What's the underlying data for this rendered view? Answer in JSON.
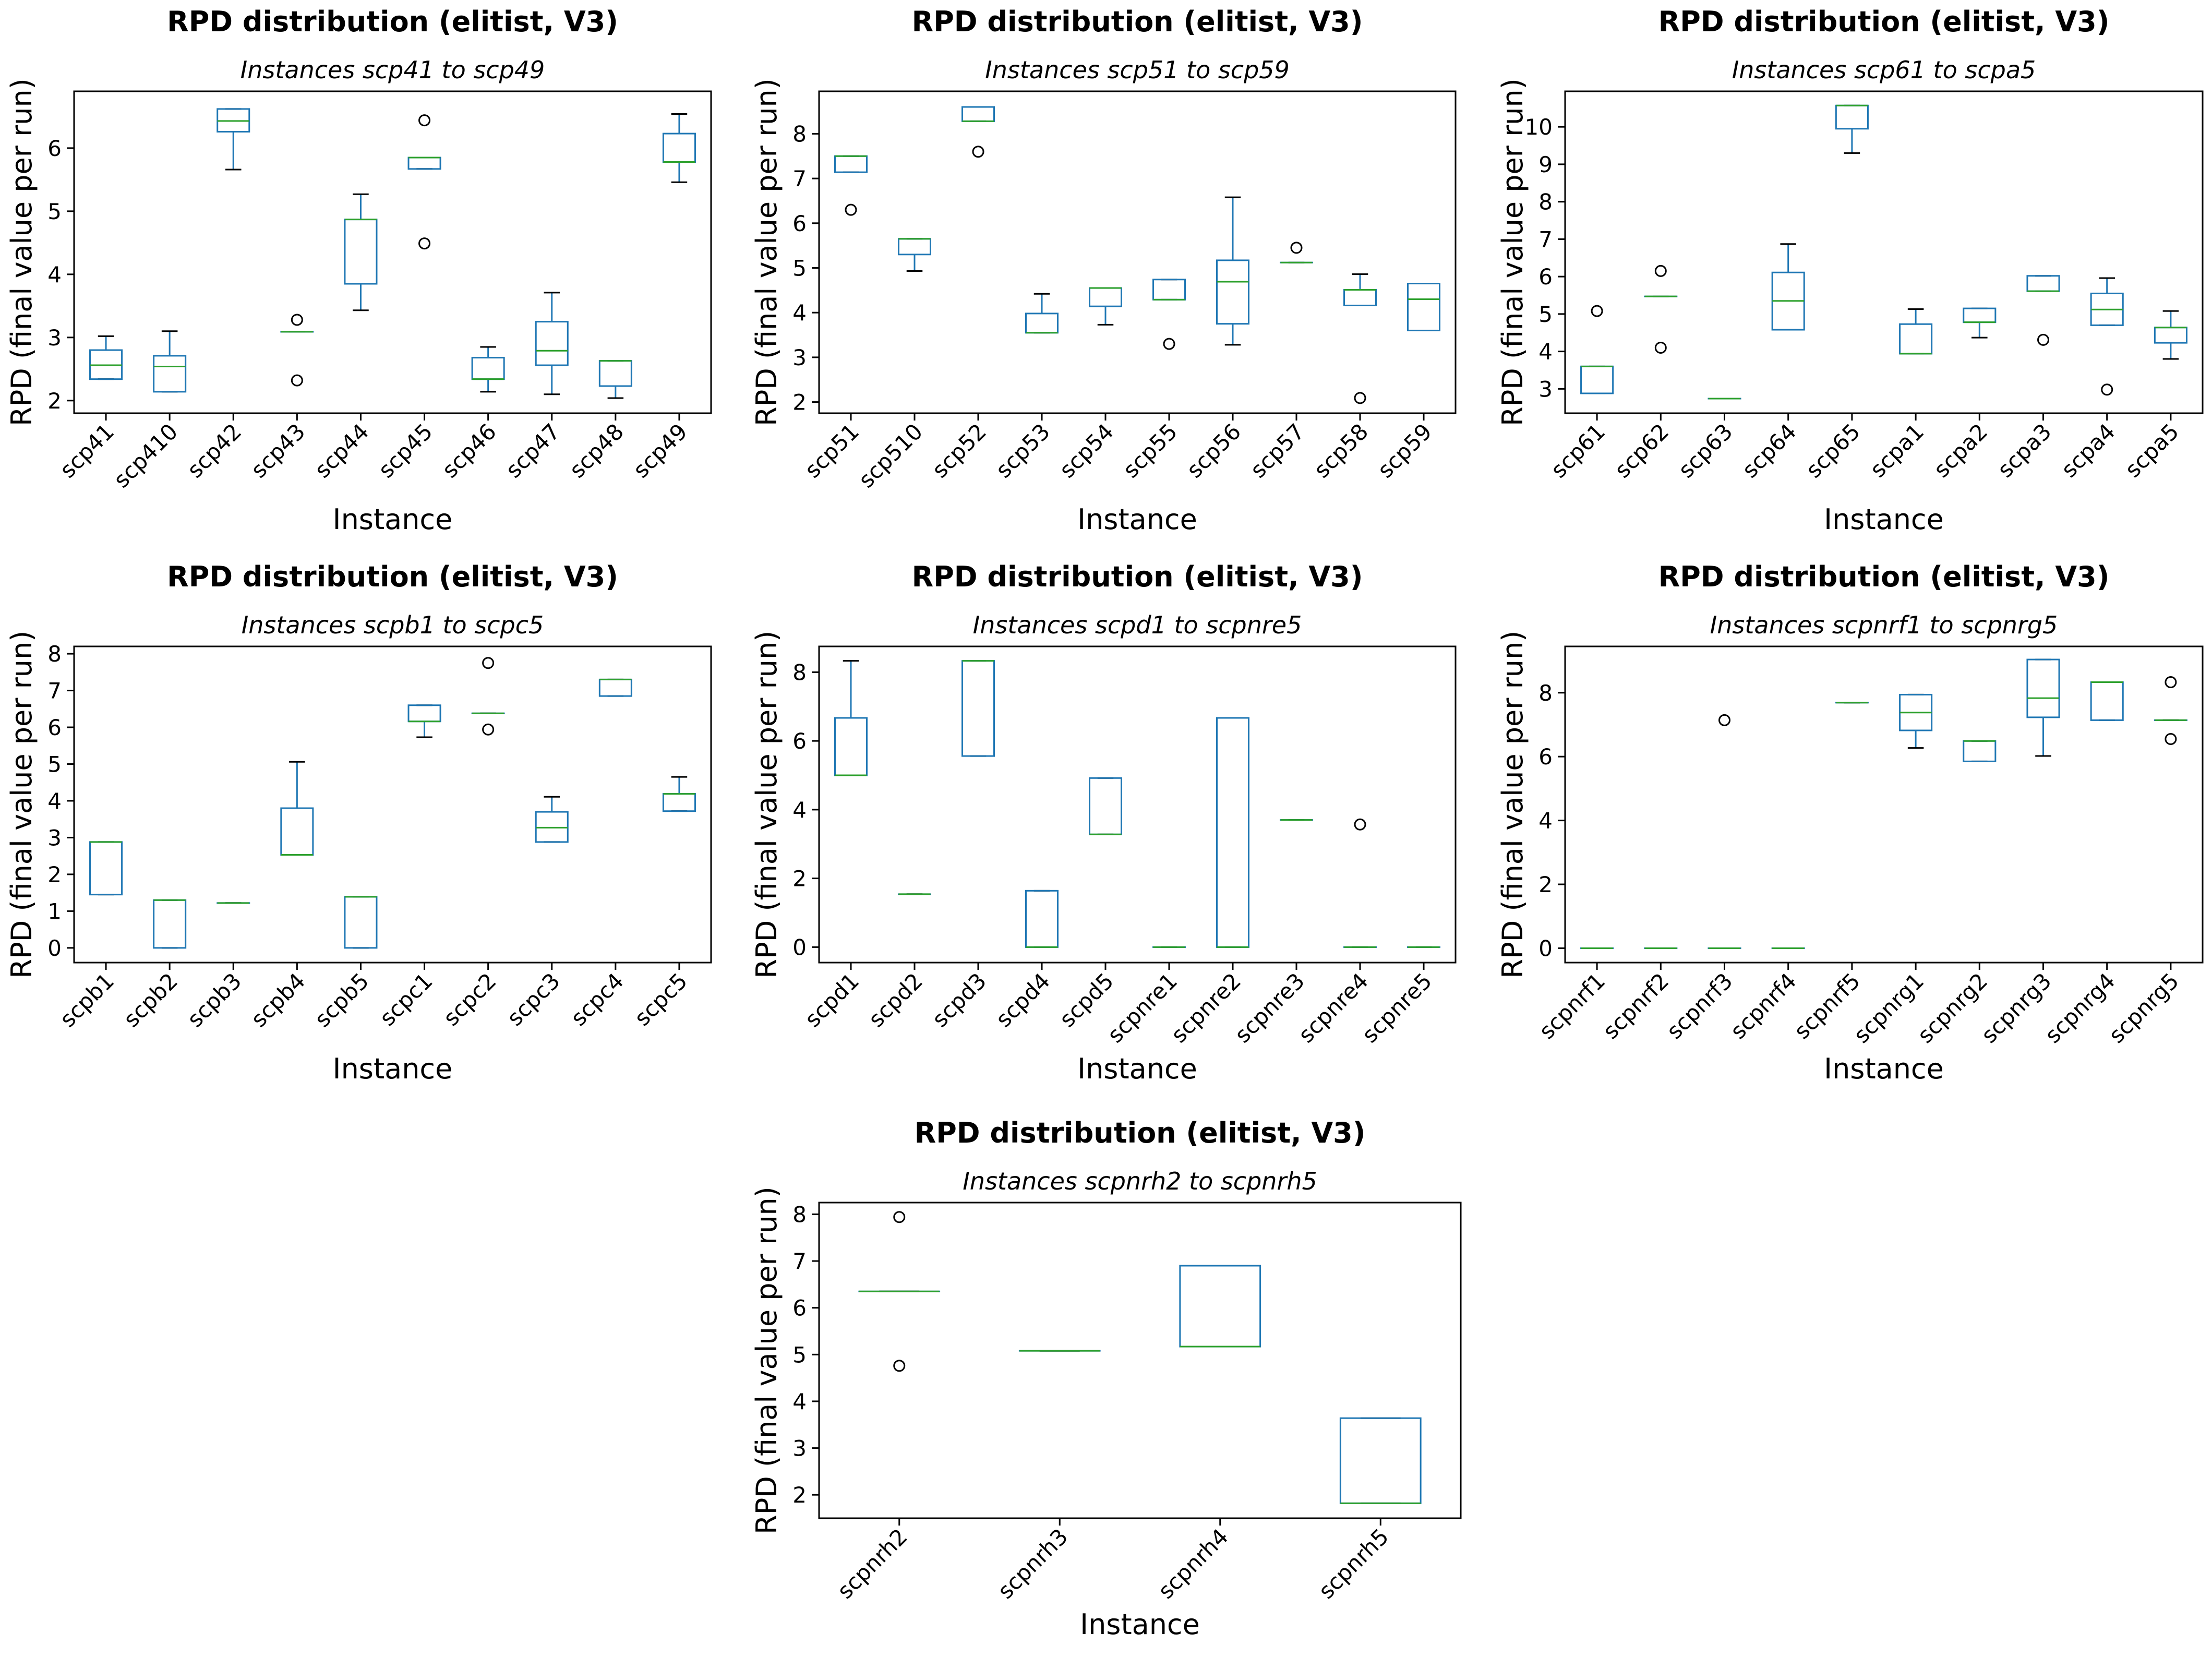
{
  "chart_data": [
    {
      "type": "box",
      "title": "RPD distribution (elitist, V3)",
      "subtitle": "Instances scp41 to scp49",
      "xlabel": "Instance",
      "ylabel": "RPD (final value per run)",
      "ylim": [
        1.8,
        6.9
      ],
      "yticks": [
        2,
        3,
        4,
        5,
        6
      ],
      "categories": [
        "scp41",
        "scp410",
        "scp42",
        "scp43",
        "scp44",
        "scp45",
        "scp46",
        "scp47",
        "scp48",
        "scp49"
      ],
      "boxes": [
        {
          "whislo": 2.34,
          "q1": 2.34,
          "med": 2.56,
          "q3": 2.8,
          "whishi": 3.02,
          "fliers": []
        },
        {
          "whislo": 2.14,
          "q1": 2.14,
          "med": 2.54,
          "q3": 2.71,
          "whishi": 3.1,
          "fliers": []
        },
        {
          "whislo": 5.66,
          "q1": 6.26,
          "med": 6.43,
          "q3": 6.62,
          "whishi": 6.62,
          "fliers": []
        },
        {
          "whislo": 3.09,
          "q1": 3.09,
          "med": 3.09,
          "q3": 3.09,
          "whishi": 3.09,
          "fliers": [
            3.28,
            2.32
          ]
        },
        {
          "whislo": 3.43,
          "q1": 3.85,
          "med": 4.87,
          "q3": 4.87,
          "whishi": 5.27,
          "fliers": []
        },
        {
          "whislo": 5.67,
          "q1": 5.67,
          "med": 5.85,
          "q3": 5.85,
          "whishi": 5.85,
          "fliers": [
            6.44,
            4.49
          ]
        },
        {
          "whislo": 2.14,
          "q1": 2.34,
          "med": 2.34,
          "q3": 2.68,
          "whishi": 2.85,
          "fliers": []
        },
        {
          "whislo": 2.1,
          "q1": 2.56,
          "med": 2.79,
          "q3": 3.25,
          "whishi": 3.71,
          "fliers": []
        },
        {
          "whislo": 2.04,
          "q1": 2.23,
          "med": 2.63,
          "q3": 2.63,
          "whishi": 2.63,
          "fliers": []
        },
        {
          "whislo": 5.46,
          "q1": 5.78,
          "med": 5.78,
          "q3": 6.23,
          "whishi": 6.54,
          "fliers": []
        }
      ]
    },
    {
      "type": "box",
      "title": "RPD distribution (elitist, V3)",
      "subtitle": "Instances scp51 to scp59",
      "xlabel": "Instance",
      "ylabel": "RPD (final value per run)",
      "ylim": [
        1.75,
        8.95
      ],
      "yticks": [
        2,
        3,
        4,
        5,
        6,
        7,
        8
      ],
      "categories": [
        "scp51",
        "scp510",
        "scp52",
        "scp53",
        "scp54",
        "scp55",
        "scp56",
        "scp57",
        "scp58",
        "scp59"
      ],
      "boxes": [
        {
          "whislo": 7.14,
          "q1": 7.14,
          "med": 7.5,
          "q3": 7.5,
          "whishi": 7.5,
          "fliers": [
            6.3
          ]
        },
        {
          "whislo": 4.93,
          "q1": 5.3,
          "med": 5.65,
          "q3": 5.65,
          "whishi": 5.65,
          "fliers": []
        },
        {
          "whislo": 8.28,
          "q1": 8.28,
          "med": 8.28,
          "q3": 8.6,
          "whishi": 8.6,
          "fliers": [
            7.6
          ]
        },
        {
          "whislo": 3.55,
          "q1": 3.55,
          "med": 3.55,
          "q3": 3.98,
          "whishi": 4.42,
          "fliers": []
        },
        {
          "whislo": 3.73,
          "q1": 4.14,
          "med": 4.55,
          "q3": 4.55,
          "whishi": 4.55,
          "fliers": []
        },
        {
          "whislo": 4.29,
          "q1": 4.29,
          "med": 4.29,
          "q3": 4.74,
          "whishi": 4.74,
          "fliers": [
            3.3
          ]
        },
        {
          "whislo": 3.28,
          "q1": 3.75,
          "med": 4.69,
          "q3": 5.17,
          "whishi": 6.58,
          "fliers": []
        },
        {
          "whislo": 5.12,
          "q1": 5.12,
          "med": 5.12,
          "q3": 5.12,
          "whishi": 5.12,
          "fliers": [
            5.45
          ]
        },
        {
          "whislo": 4.16,
          "q1": 4.16,
          "med": 4.51,
          "q3": 4.51,
          "whishi": 4.86,
          "fliers": [
            2.09
          ]
        },
        {
          "whislo": 3.6,
          "q1": 3.6,
          "med": 4.3,
          "q3": 4.65,
          "whishi": 4.65,
          "fliers": []
        }
      ]
    },
    {
      "type": "box",
      "title": "RPD distribution (elitist, V3)",
      "subtitle": "Instances scp61 to scpa5",
      "xlabel": "Instance",
      "ylabel": "RPD (final value per run)",
      "ylim": [
        2.35,
        10.95
      ],
      "yticks": [
        3,
        4,
        5,
        6,
        7,
        8,
        9,
        10
      ],
      "categories": [
        "scp61",
        "scp62",
        "scp63",
        "scp64",
        "scp65",
        "scpa1",
        "scpa2",
        "scpa3",
        "scpa4",
        "scpa5"
      ],
      "boxes": [
        {
          "whislo": 2.88,
          "q1": 2.88,
          "med": 3.6,
          "q3": 3.6,
          "whishi": 3.6,
          "fliers": [
            5.08
          ]
        },
        {
          "whislo": 5.47,
          "q1": 5.47,
          "med": 5.47,
          "q3": 5.47,
          "whishi": 5.47,
          "fliers": [
            6.15,
            4.1
          ]
        },
        {
          "whislo": 2.74,
          "q1": 2.74,
          "med": 2.74,
          "q3": 2.74,
          "whishi": 2.74,
          "fliers": []
        },
        {
          "whislo": 4.58,
          "q1": 4.58,
          "med": 5.35,
          "q3": 6.11,
          "whishi": 6.87,
          "fliers": []
        },
        {
          "whislo": 9.3,
          "q1": 9.95,
          "med": 10.57,
          "q3": 10.57,
          "whishi": 10.57,
          "fliers": []
        },
        {
          "whislo": 3.94,
          "q1": 3.94,
          "med": 3.94,
          "q3": 4.73,
          "whishi": 5.13,
          "fliers": []
        },
        {
          "whislo": 4.37,
          "q1": 4.78,
          "med": 4.78,
          "q3": 5.15,
          "whishi": 5.15,
          "fliers": []
        },
        {
          "whislo": 5.61,
          "q1": 5.61,
          "med": 5.61,
          "q3": 6.02,
          "whishi": 6.02,
          "fliers": [
            4.31
          ]
        },
        {
          "whislo": 4.7,
          "q1": 4.7,
          "med": 5.12,
          "q3": 5.55,
          "whishi": 5.96,
          "fliers": [
            2.98
          ]
        },
        {
          "whislo": 3.8,
          "q1": 4.23,
          "med": 4.64,
          "q3": 4.64,
          "whishi": 5.08,
          "fliers": []
        }
      ]
    },
    {
      "type": "box",
      "title": "RPD distribution (elitist, V3)",
      "subtitle": "Instances scpb1 to scpc5",
      "xlabel": "Instance",
      "ylabel": "RPD (final value per run)",
      "ylim": [
        -0.4,
        8.2
      ],
      "yticks": [
        0,
        1,
        2,
        3,
        4,
        5,
        6,
        7,
        8
      ],
      "categories": [
        "scpb1",
        "scpb2",
        "scpb3",
        "scpb4",
        "scpb5",
        "scpc1",
        "scpc2",
        "scpc3",
        "scpc4",
        "scpc5"
      ],
      "boxes": [
        {
          "whislo": 1.45,
          "q1": 1.45,
          "med": 2.88,
          "q3": 2.88,
          "whishi": 2.88,
          "fliers": []
        },
        {
          "whislo": 0.0,
          "q1": 0.0,
          "med": 1.3,
          "q3": 1.3,
          "whishi": 1.3,
          "fliers": []
        },
        {
          "whislo": 1.22,
          "q1": 1.22,
          "med": 1.22,
          "q3": 1.22,
          "whishi": 1.22,
          "fliers": []
        },
        {
          "whislo": 2.53,
          "q1": 2.53,
          "med": 2.53,
          "q3": 3.8,
          "whishi": 5.06,
          "fliers": []
        },
        {
          "whislo": 0.0,
          "q1": 0.0,
          "med": 1.39,
          "q3": 1.39,
          "whishi": 1.39,
          "fliers": []
        },
        {
          "whislo": 5.73,
          "q1": 6.16,
          "med": 6.16,
          "q3": 6.6,
          "whishi": 6.6,
          "fliers": []
        },
        {
          "whislo": 6.38,
          "q1": 6.38,
          "med": 6.38,
          "q3": 6.38,
          "whishi": 6.38,
          "fliers": [
            7.75,
            5.94
          ]
        },
        {
          "whislo": 2.88,
          "q1": 2.88,
          "med": 3.27,
          "q3": 3.7,
          "whishi": 4.11,
          "fliers": []
        },
        {
          "whislo": 6.85,
          "q1": 6.85,
          "med": 7.3,
          "q3": 7.3,
          "whishi": 7.3,
          "fliers": []
        },
        {
          "whislo": 3.72,
          "q1": 3.72,
          "med": 4.19,
          "q3": 4.19,
          "whishi": 4.65,
          "fliers": []
        }
      ]
    },
    {
      "type": "box",
      "title": "RPD distribution (elitist, V3)",
      "subtitle": "Instances scpd1 to scpnre5",
      "xlabel": "Instance",
      "ylabel": "RPD (final value per run)",
      "ylim": [
        -0.45,
        8.75
      ],
      "yticks": [
        0,
        2,
        4,
        6,
        8
      ],
      "categories": [
        "scpd1",
        "scpd2",
        "scpd3",
        "scpd4",
        "scpd5",
        "scpnre1",
        "scpnre2",
        "scpnre3",
        "scpnre4",
        "scpnre5"
      ],
      "boxes": [
        {
          "whislo": 5.0,
          "q1": 5.0,
          "med": 5.0,
          "q3": 6.67,
          "whishi": 8.33,
          "fliers": []
        },
        {
          "whislo": 1.54,
          "q1": 1.54,
          "med": 1.54,
          "q3": 1.54,
          "whishi": 1.54,
          "fliers": []
        },
        {
          "whislo": 5.56,
          "q1": 5.56,
          "med": 8.33,
          "q3": 8.33,
          "whishi": 8.33,
          "fliers": []
        },
        {
          "whislo": 0.0,
          "q1": 0.0,
          "med": 0.0,
          "q3": 1.64,
          "whishi": 1.64,
          "fliers": []
        },
        {
          "whislo": 3.28,
          "q1": 3.28,
          "med": 3.28,
          "q3": 4.92,
          "whishi": 4.92,
          "fliers": []
        },
        {
          "whislo": 0.0,
          "q1": 0.0,
          "med": 0.0,
          "q3": 0.0,
          "whishi": 0.0,
          "fliers": []
        },
        {
          "whislo": 0.0,
          "q1": 0.0,
          "med": 0.0,
          "q3": 6.67,
          "whishi": 6.67,
          "fliers": []
        },
        {
          "whislo": 3.7,
          "q1": 3.7,
          "med": 3.7,
          "q3": 3.7,
          "whishi": 3.7,
          "fliers": []
        },
        {
          "whislo": 0.0,
          "q1": 0.0,
          "med": 0.0,
          "q3": 0.0,
          "whishi": 0.0,
          "fliers": [
            3.57
          ]
        },
        {
          "whislo": 0.0,
          "q1": 0.0,
          "med": 0.0,
          "q3": 0.0,
          "whishi": 0.0,
          "fliers": []
        }
      ]
    },
    {
      "type": "box",
      "title": "RPD distribution (elitist, V3)",
      "subtitle": "Instances scpnrf1 to scpnrg5",
      "xlabel": "Instance",
      "ylabel": "RPD (final value per run)",
      "ylim": [
        -0.45,
        9.45
      ],
      "yticks": [
        0,
        2,
        4,
        6,
        8
      ],
      "categories": [
        "scpnrf1",
        "scpnrf2",
        "scpnrf3",
        "scpnrf4",
        "scpnrf5",
        "scpnrg1",
        "scpnrg2",
        "scpnrg3",
        "scpnrg4",
        "scpnrg5"
      ],
      "boxes": [
        {
          "whislo": 0.0,
          "q1": 0.0,
          "med": 0.0,
          "q3": 0.0,
          "whishi": 0.0,
          "fliers": []
        },
        {
          "whislo": 0.0,
          "q1": 0.0,
          "med": 0.0,
          "q3": 0.0,
          "whishi": 0.0,
          "fliers": []
        },
        {
          "whislo": 0.0,
          "q1": 0.0,
          "med": 0.0,
          "q3": 0.0,
          "whishi": 0.0,
          "fliers": [
            7.14
          ]
        },
        {
          "whislo": 0.0,
          "q1": 0.0,
          "med": 0.0,
          "q3": 0.0,
          "whishi": 0.0,
          "fliers": []
        },
        {
          "whislo": 7.69,
          "q1": 7.69,
          "med": 7.69,
          "q3": 7.69,
          "whishi": 7.69,
          "fliers": []
        },
        {
          "whislo": 6.27,
          "q1": 6.82,
          "med": 7.38,
          "q3": 7.94,
          "whishi": 7.94,
          "fliers": []
        },
        {
          "whislo": 5.85,
          "q1": 5.85,
          "med": 6.49,
          "q3": 6.49,
          "whishi": 6.49,
          "fliers": []
        },
        {
          "whislo": 6.02,
          "q1": 7.23,
          "med": 7.83,
          "q3": 9.04,
          "whishi": 9.04,
          "fliers": []
        },
        {
          "whislo": 7.14,
          "q1": 7.14,
          "med": 8.33,
          "q3": 8.33,
          "whishi": 8.33,
          "fliers": []
        },
        {
          "whislo": 7.14,
          "q1": 7.14,
          "med": 7.14,
          "q3": 7.14,
          "whishi": 7.14,
          "fliers": [
            8.33,
            6.55
          ]
        }
      ]
    },
    {
      "type": "box",
      "title": "RPD distribution (elitist, V3)",
      "subtitle": "Instances scpnrh2 to scpnrh5",
      "xlabel": "Instance",
      "ylabel": "RPD (final value per run)",
      "ylim": [
        1.5,
        8.25
      ],
      "yticks": [
        2,
        3,
        4,
        5,
        6,
        7,
        8
      ],
      "categories": [
        "scpnrh2",
        "scpnrh3",
        "scpnrh4",
        "scpnrh5"
      ],
      "boxes": [
        {
          "whislo": 6.35,
          "q1": 6.35,
          "med": 6.35,
          "q3": 6.35,
          "whishi": 6.35,
          "fliers": [
            7.94,
            4.76
          ]
        },
        {
          "whislo": 5.08,
          "q1": 5.08,
          "med": 5.08,
          "q3": 5.08,
          "whishi": 5.08,
          "fliers": []
        },
        {
          "whislo": 5.17,
          "q1": 5.17,
          "med": 5.17,
          "q3": 6.9,
          "whishi": 6.9,
          "fliers": []
        },
        {
          "whislo": 1.82,
          "q1": 1.82,
          "med": 1.82,
          "q3": 3.64,
          "whishi": 3.64,
          "fliers": []
        }
      ]
    }
  ],
  "colors": {
    "box": "#1f77b4",
    "median": "#2ca02c",
    "axes": "#000000"
  }
}
